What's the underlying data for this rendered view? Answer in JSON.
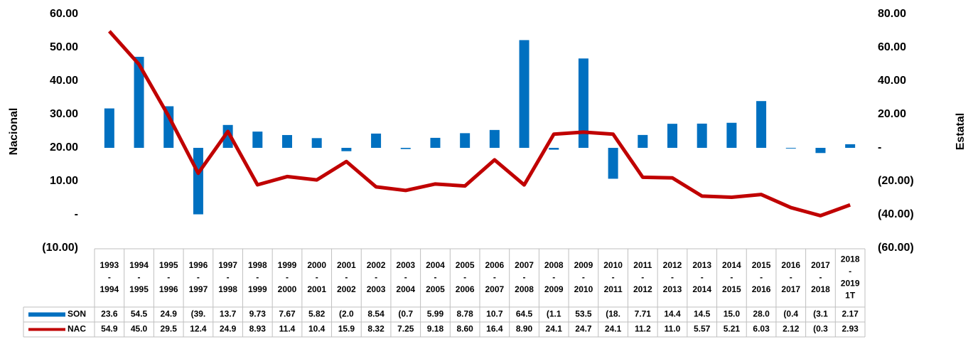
{
  "chart_data": {
    "type": "bar-line",
    "y_label": "Nacional",
    "y2_label": "Estatal",
    "categories": [
      "1993\n-\n1994",
      "1994\n-\n1995",
      "1995\n-\n1996",
      "1996\n-\n1997",
      "1997\n-\n1998",
      "1998\n-\n1999",
      "1999\n-\n2000",
      "2000\n-\n2001",
      "2001\n-\n2002",
      "2002\n-\n2003",
      "2003\n-\n2004",
      "2004\n-\n2005",
      "2005\n-\n2006",
      "2006\n-\n2007",
      "2007\n-\n2008",
      "2008\n-\n2009",
      "2009\n-\n2010",
      "2010\n-\n2011",
      "2011\n-\n2012",
      "2012\n-\n2013",
      "2013\n-\n2014",
      "2014\n-\n2015",
      "2015\n-\n2016",
      "2016\n-\n2017",
      "2017\n-\n2018",
      "2018\n-\n2019\n1T"
    ],
    "series": [
      {
        "name": "SON",
        "type": "bar",
        "axis": "y2",
        "color": "#0070c0",
        "values": [
          23.6,
          54.5,
          24.9,
          -39.8,
          13.7,
          9.73,
          7.67,
          5.82,
          -2.0,
          8.54,
          -0.7,
          5.99,
          8.78,
          10.7,
          64.5,
          -1.1,
          53.5,
          -18.5,
          7.71,
          14.4,
          14.5,
          15.0,
          28.0,
          -0.4,
          -3.1,
          2.17
        ],
        "value_labels": [
          "23.6",
          "54.5",
          "24.9",
          "(39.",
          "13.7",
          "9.73",
          "7.67",
          "5.82",
          "(2.0",
          "8.54",
          "(0.7",
          "5.99",
          "8.78",
          "10.7",
          "64.5",
          "(1.1",
          "53.5",
          "(18.",
          "7.71",
          "14.4",
          "14.5",
          "15.0",
          "28.0",
          "(0.4",
          "(3.1",
          "2.17"
        ]
      },
      {
        "name": "NAC",
        "type": "line",
        "color": "#c00000",
        "values": [
          54.9,
          45.0,
          29.5,
          12.4,
          24.9,
          8.93,
          11.4,
          10.4,
          15.9,
          8.32,
          7.25,
          9.18,
          8.6,
          16.4,
          8.9,
          24.1,
          24.7,
          24.1,
          11.2,
          11.0,
          5.57,
          5.21,
          6.03,
          2.12,
          -0.3,
          2.93
        ],
        "value_labels": [
          "54.9",
          "45.0",
          "29.5",
          "12.4",
          "24.9",
          "8.93",
          "11.4",
          "10.4",
          "15.9",
          "8.32",
          "7.25",
          "9.18",
          "8.60",
          "16.4",
          "8.90",
          "24.1",
          "24.7",
          "24.1",
          "11.2",
          "11.0",
          "5.57",
          "5.21",
          "6.03",
          "2.12",
          "(0.3",
          "2.93"
        ]
      }
    ],
    "ylim": [
      -10,
      60
    ],
    "yticks": [
      {
        "value": -10,
        "label": "(10.00)"
      },
      {
        "value": 0,
        "label": "-"
      },
      {
        "value": 10,
        "label": "10.00"
      },
      {
        "value": 20,
        "label": "20.00"
      },
      {
        "value": 30,
        "label": "30.00"
      },
      {
        "value": 40,
        "label": "40.00"
      },
      {
        "value": 50,
        "label": "50.00"
      },
      {
        "value": 60,
        "label": "60.00"
      }
    ],
    "y2lim": [
      -60,
      80
    ],
    "y2ticks": [
      {
        "value": -60,
        "label": "(60.00)"
      },
      {
        "value": -40,
        "label": "(40.00)"
      },
      {
        "value": -20,
        "label": "(20.00)"
      },
      {
        "value": 0,
        "label": "-"
      },
      {
        "value": 20,
        "label": "20.00"
      },
      {
        "value": 40,
        "label": "40.00"
      },
      {
        "value": 60,
        "label": "60.00"
      },
      {
        "value": 80,
        "label": "80.00"
      }
    ],
    "grid": false
  }
}
